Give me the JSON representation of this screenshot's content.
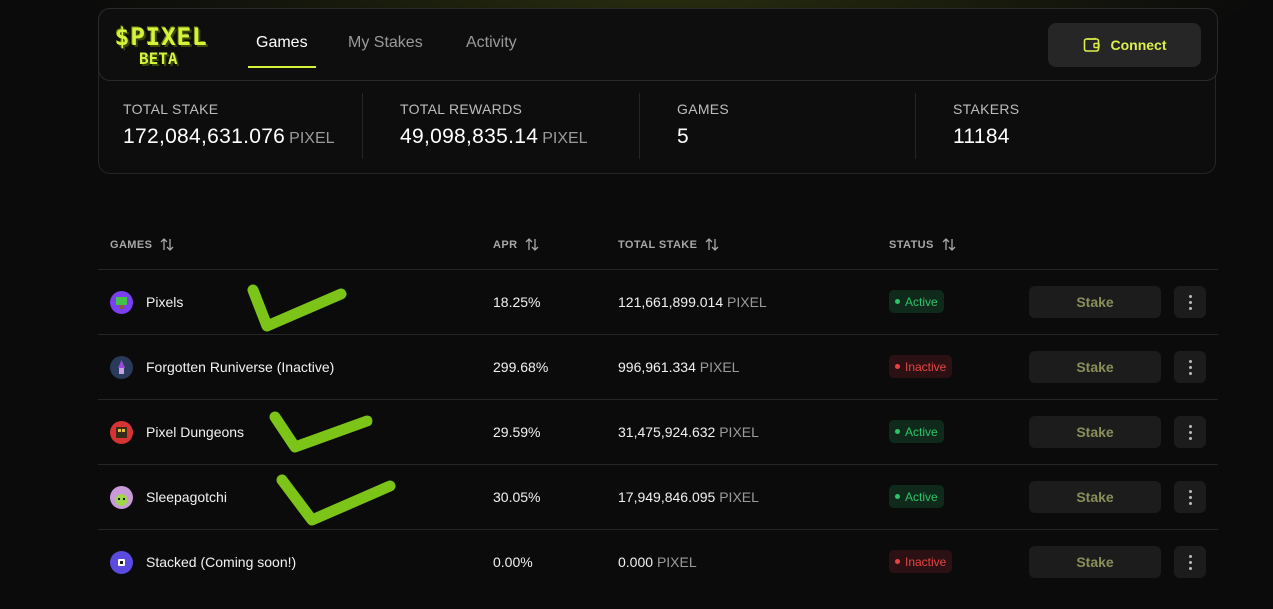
{
  "brand": {
    "logo_line1": "$PIXEL",
    "logo_line2": "BETA",
    "accent": "#d6f23a"
  },
  "nav": {
    "tabs": [
      {
        "label": "Games",
        "active": true
      },
      {
        "label": "My Stakes",
        "active": false
      },
      {
        "label": "Activity",
        "active": false
      }
    ],
    "connect_label": "Connect",
    "connect_icon": "wallet-icon"
  },
  "stats": [
    {
      "label": "TOTAL STAKE",
      "value": "172,084,631.076",
      "unit": "PIXEL"
    },
    {
      "label": "TOTAL REWARDS",
      "value": "49,098,835.14",
      "unit": "PIXEL"
    },
    {
      "label": "GAMES",
      "value": "5",
      "unit": ""
    },
    {
      "label": "STAKERS",
      "value": "11184",
      "unit": ""
    }
  ],
  "table": {
    "headers": {
      "games": "GAMES",
      "apr": "APR",
      "total_stake": "TOTAL STAKE",
      "status": "STATUS"
    },
    "sort_icon": "sort-arrows-icon",
    "rows": [
      {
        "name": "Pixels",
        "apr": "18.25%",
        "stake": "121,661,899.014",
        "unit": "PIXEL",
        "status": "Active",
        "action": "Stake"
      },
      {
        "name": "Forgotten Runiverse (Inactive)",
        "apr": "299.68%",
        "stake": "996,961.334",
        "unit": "PIXEL",
        "status": "Inactive",
        "action": "Stake"
      },
      {
        "name": "Pixel Dungeons",
        "apr": "29.59%",
        "stake": "31,475,924.632",
        "unit": "PIXEL",
        "status": "Active",
        "action": "Stake"
      },
      {
        "name": "Sleepagotchi",
        "apr": "30.05%",
        "stake": "17,949,846.095",
        "unit": "PIXEL",
        "status": "Active",
        "action": "Stake"
      },
      {
        "name": "Stacked (Coming soon!)",
        "apr": "0.00%",
        "stake": "0.000",
        "unit": "PIXEL",
        "status": "Inactive",
        "action": "Stake"
      }
    ]
  },
  "colors": {
    "active": "#2ec46a",
    "inactive": "#e64545",
    "annotation": "#7cc418"
  }
}
